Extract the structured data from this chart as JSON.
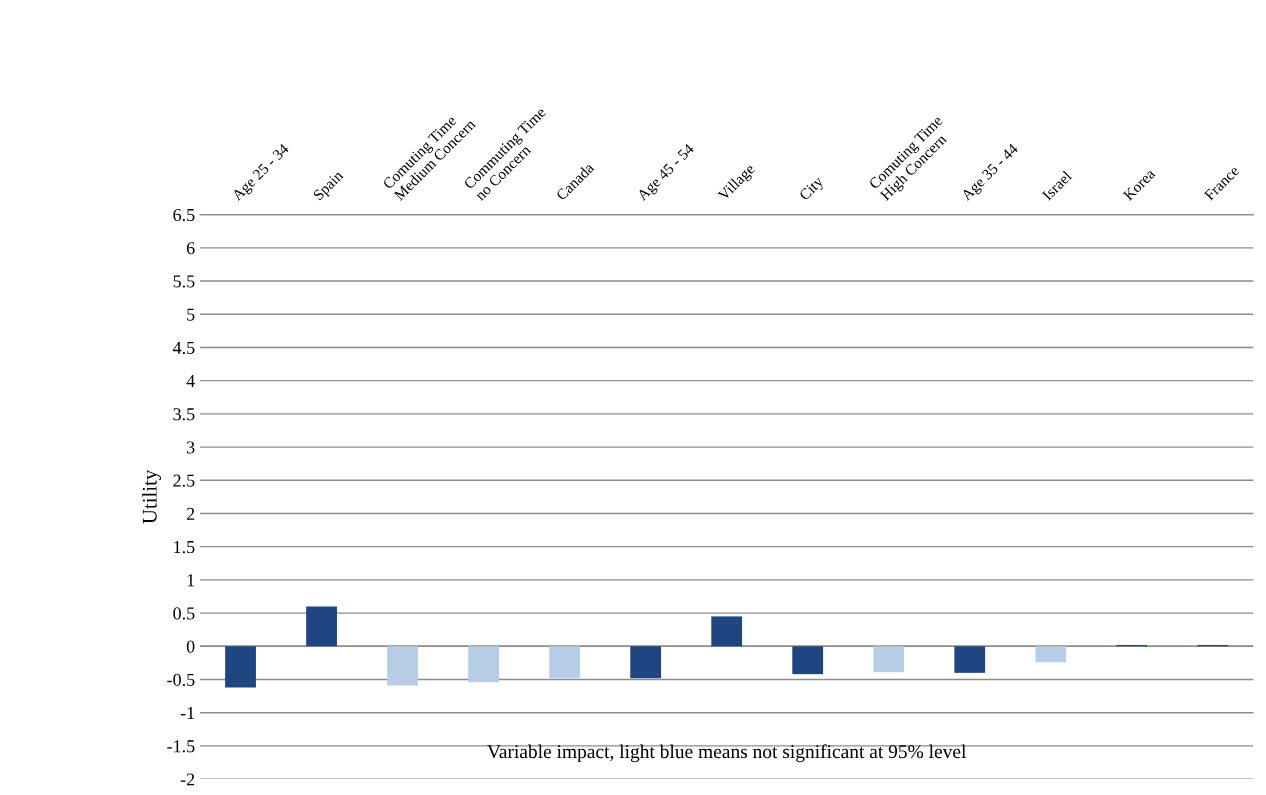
{
  "chart_data": {
    "type": "bar",
    "ylabel": "Utility",
    "categories": [
      "Age 25 - 34",
      "Spain",
      "Comuting Time Medium Concern",
      "Commuting Time no Concern",
      "Canada",
      "Age 45 - 54",
      "Village",
      "City",
      "Comuting Time High Concern",
      "Age 35 - 44",
      "Israel",
      "Korea",
      "France"
    ],
    "values": [
      -0.62,
      0.6,
      -0.59,
      -0.54,
      -0.48,
      -0.48,
      0.45,
      -0.42,
      -0.39,
      -0.4,
      -0.24,
      0.02,
      0.02
    ],
    "colors": [
      "#1f4681",
      "#1f4681",
      "#b7cde6",
      "#b7cde6",
      "#b7cde6",
      "#1f4681",
      "#1f4681",
      "#1f4681",
      "#b7cde6",
      "#1f4681",
      "#b7cde6",
      "#1f4681",
      "#1f4681"
    ],
    "ylim": [
      -2,
      6.5
    ],
    "yticks": [
      {
        "value": -2,
        "label": "-2"
      },
      {
        "value": -1.5,
        "label": "-1.5"
      },
      {
        "value": -1,
        "label": "-1"
      },
      {
        "value": -0.5,
        "label": "-0.5"
      },
      0,
      0.5,
      1,
      1.5,
      2,
      2.5,
      3,
      3.5,
      4,
      4.5,
      5,
      5.5,
      6,
      6.5
    ],
    "grid": "y",
    "annotations": [
      "Variable impact, light blue means not significant at 95% level"
    ]
  }
}
